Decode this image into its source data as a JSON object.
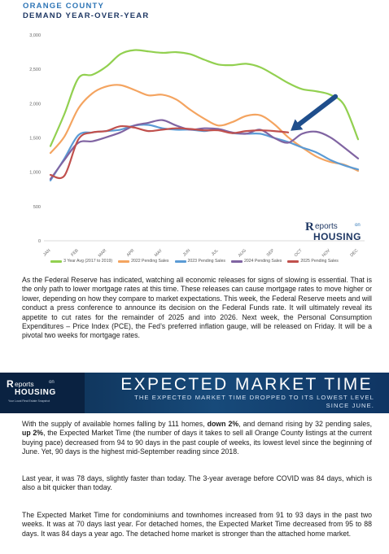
{
  "chart_header": {
    "line1": "ORANGE COUNTY",
    "line2": "DEMAND YEAR-OVER-YEAR"
  },
  "chart_logo": {
    "r": "R",
    "rest": "eports",
    "on": "on",
    "housing": "HOUSING"
  },
  "chart_data": {
    "type": "line",
    "title": "",
    "xlabel": "",
    "ylabel": "",
    "categories": [
      "JAN",
      "FEB",
      "MAR",
      "APR",
      "MAY",
      "JUN",
      "JUL",
      "AUG",
      "SEP",
      "OCT",
      "NOV",
      "DEC"
    ],
    "ylim": [
      0,
      3000
    ],
    "yticks": [
      0,
      500,
      "1,000",
      "1,500",
      "2,000",
      "2,500",
      "3,000"
    ],
    "ytick_values": [
      0,
      500,
      1000,
      1500,
      2000,
      2500,
      3000
    ],
    "grid": false,
    "legend_position": "bottom",
    "series": [
      {
        "name": "3 Year Avg (2017 to 2019)",
        "color": "#92d050",
        "x": [
          0,
          0.5,
          1,
          1.5,
          2,
          2.5,
          3,
          3.5,
          4,
          4.5,
          5,
          5.5,
          6,
          6.5,
          7,
          7.5,
          8,
          8.5,
          9,
          9.5,
          10,
          10.5,
          11
        ],
        "values": [
          1380,
          1850,
          2370,
          2420,
          2540,
          2720,
          2780,
          2760,
          2740,
          2750,
          2720,
          2640,
          2570,
          2560,
          2580,
          2530,
          2420,
          2300,
          2210,
          2180,
          2130,
          1980,
          1480
        ]
      },
      {
        "name": "2022 Pending Sales",
        "color": "#f4a460",
        "x": [
          0,
          0.5,
          1,
          1.5,
          2,
          2.5,
          3,
          3.5,
          4,
          4.5,
          5,
          5.5,
          6,
          6.5,
          7,
          7.5,
          8,
          8.5,
          9,
          9.5,
          10,
          10.5,
          11
        ],
        "values": [
          1280,
          1520,
          1930,
          2150,
          2250,
          2270,
          2200,
          2120,
          2130,
          2060,
          1910,
          1780,
          1680,
          1730,
          1820,
          1830,
          1700,
          1510,
          1360,
          1230,
          1150,
          1110,
          1020
        ]
      },
      {
        "name": "2023 Pending Sales",
        "color": "#5b9bd5",
        "x": [
          0,
          0.5,
          1,
          1.5,
          2,
          2.5,
          3,
          3.5,
          4,
          4.5,
          5,
          5.5,
          6,
          6.5,
          7,
          7.5,
          8,
          8.5,
          9,
          9.5,
          10,
          10.5,
          11
        ],
        "values": [
          880,
          1200,
          1540,
          1580,
          1600,
          1620,
          1680,
          1690,
          1640,
          1620,
          1620,
          1600,
          1620,
          1570,
          1560,
          1560,
          1500,
          1440,
          1360,
          1290,
          1180,
          1100,
          1040
        ]
      },
      {
        "name": "2024 Pending Sales",
        "color": "#8064a2",
        "x": [
          0,
          0.5,
          1,
          1.5,
          2,
          2.5,
          3,
          3.5,
          4,
          4.5,
          5,
          5.5,
          6,
          6.5,
          7,
          7.5,
          8,
          8.5,
          9,
          9.5,
          10,
          10.5,
          11
        ],
        "values": [
          900,
          1180,
          1430,
          1450,
          1510,
          1580,
          1680,
          1720,
          1760,
          1680,
          1620,
          1640,
          1630,
          1580,
          1560,
          1620,
          1500,
          1430,
          1560,
          1590,
          1510,
          1360,
          1200
        ]
      },
      {
        "name": "2025 Pending Sales",
        "color": "#c0504d",
        "x": [
          0,
          0.5,
          1,
          1.5,
          2,
          2.5,
          3,
          3.5,
          4,
          4.5,
          5,
          5.5,
          6,
          6.5,
          7,
          7.5,
          8,
          8.5
        ],
        "values": [
          960,
          950,
          1480,
          1580,
          1600,
          1670,
          1650,
          1600,
          1620,
          1640,
          1630,
          1610,
          1610,
          1570,
          1600,
          1610,
          1600,
          1580
        ]
      }
    ],
    "annotation": {
      "type": "arrow",
      "points_to": "2025 Pending Sales at SEP",
      "color": "#1f4e8c"
    }
  },
  "paragraph1": "As the Federal Reserve has indicated, watching all economic releases for signs of slowing is essential. That is the only path to lower mortgage rates at this time. These releases can cause mortgage rates to move higher or lower, depending on how they compare to market expectations. This week, the Federal Reserve meets and will conduct a press conference to announce its decision on the Federal Funds rate. It will ultimately reveal its appetite to cut rates for the remainder of 2025 and into 2026. Next week, the Personal Consumption Expenditures – Price Index (PCE), the Fed’s preferred inflation gauge, will be released on Friday. It will be a pivotal two weeks for mortgage rates.",
  "banner": {
    "title": "EXPECTED MARKET TIME",
    "subtitle": "THE EXPECTED MARKET TIME DROPPED TO ITS LOWEST LEVEL SINCE JUNE.",
    "logo_r": "R",
    "logo_rest": "eports",
    "logo_on": "on",
    "logo_housing": "HOUSING",
    "logo_tagline": "Your Local Real Estate Snapshot"
  },
  "paragraph2": {
    "a": "With the supply of available homes falling by 111 homes, ",
    "b": "down 2%",
    "c": ", and demand rising by 32 pending sales, ",
    "d": "up 2%",
    "e": ", the Expected Market Time (the number of days it takes to sell all Orange County listings at the current buying pace) decreased from 94 to 90 days in the past couple of weeks, its lowest level since the beginning of June. Yet, 90 days is the highest mid-September reading since 2018."
  },
  "paragraph3": "Last year, it was 78 days, slightly faster than today. The 3-year average before COVID was 84 days, which is also a bit quicker than today.",
  "paragraph4": "The Expected Market Time for condominiums and townhomes increased from 91 to 93 days in the past two weeks. It was at 70 days last year. For detached homes, the Expected Market Time decreased from 95 to 88 days. It was 84 days a year ago. The detached home market is stronger than the attached home market."
}
